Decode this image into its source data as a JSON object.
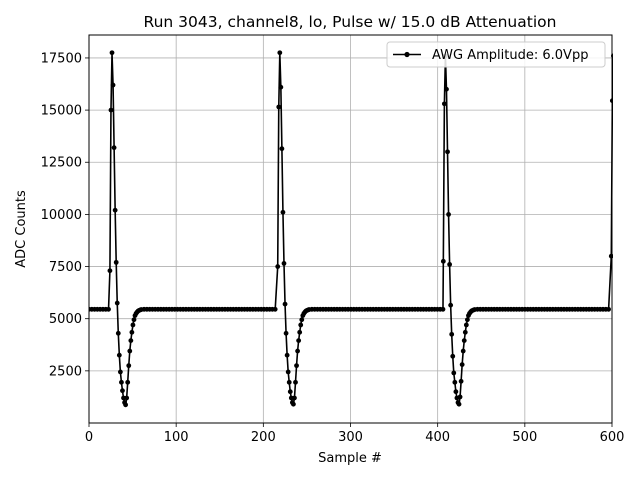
{
  "chart_data": {
    "type": "line",
    "title": "Run 3043, channel8, lo, Pulse w/ 15.0 dB Attenuation",
    "xlabel": "Sample #",
    "ylabel": "ADC Counts",
    "xlim": [
      0,
      600
    ],
    "ylim": [
      0,
      18600
    ],
    "xticks": [
      0,
      100,
      200,
      300,
      400,
      500,
      600
    ],
    "yticks": [
      2500,
      5000,
      7500,
      10000,
      12500,
      15000,
      17500
    ],
    "xtick_labels": [
      "0",
      "100",
      "200",
      "300",
      "400",
      "500",
      "600"
    ],
    "ytick_labels": [
      "2500",
      "5000",
      "7500",
      "10000",
      "12500",
      "15000",
      "17500"
    ],
    "grid": true,
    "legend_position": "top-right",
    "series": [
      {
        "name": "AWG Amplitude: 6.0Vpp",
        "color": "#000000",
        "marker": "circle",
        "baseline": 5450,
        "baseline_step": 3.2,
        "pulses": [
          {
            "start": 24,
            "values": [
              7300,
              15000,
              17750,
              16200,
              13200,
              10200,
              7700,
              5750,
              4300,
              3250,
              2450,
              1950,
              1550,
              1200,
              980,
              870,
              1200,
              1950,
              2750,
              3450,
              3950,
              4350,
              4700,
              4950,
              5150,
              5250,
              5320,
              5370,
              5400,
              5420,
              5440
            ]
          },
          {
            "start": 216.5,
            "values": [
              7500,
              15150,
              17750,
              16100,
              13150,
              10100,
              7650,
              5700,
              4300,
              3250,
              2450,
              1950,
              1500,
              1200,
              980,
              900,
              1200,
              1950,
              2750,
              3450,
              3950,
              4350,
              4700,
              4950,
              5150,
              5250,
              5320,
              5370,
              5400,
              5420,
              5440
            ]
          },
          {
            "start": 406.5,
            "values": [
              7750,
              15300,
              17600,
              16000,
              13000,
              10000,
              7600,
              5650,
              4250,
              3200,
              2400,
              1950,
              1500,
              1200,
              980,
              900,
              1250,
              2000,
              2800,
              3450,
              3950,
              4350,
              4700,
              4950,
              5150,
              5250,
              5320,
              5370,
              5400,
              5420,
              5440
            ]
          },
          {
            "start": 599.2,
            "values": [
              8000,
              15450,
              17600
            ]
          }
        ]
      }
    ]
  }
}
